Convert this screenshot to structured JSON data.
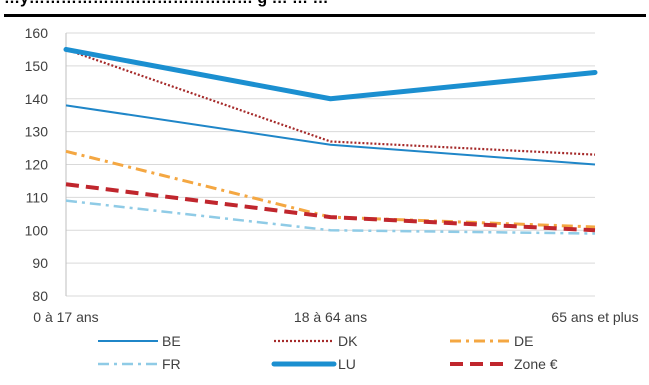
{
  "header": {
    "text": "…y…………………………………… g … … …"
  },
  "chart_data": {
    "type": "line",
    "categories": [
      "0 à 17 ans",
      "18 à 64 ans",
      "65 ans et plus"
    ],
    "ylim": [
      80,
      160
    ],
    "yticks": [
      80,
      90,
      100,
      110,
      120,
      130,
      140,
      150,
      160
    ],
    "grid": true,
    "legend_position": "bottom",
    "series": [
      {
        "name": "BE",
        "values": [
          138,
          126,
          120
        ],
        "color": "#1f86c8",
        "style": "solid-thin"
      },
      {
        "name": "DK",
        "values": [
          155,
          127,
          123
        ],
        "color": "#a52a2a",
        "style": "dotted"
      },
      {
        "name": "DE",
        "values": [
          124,
          104,
          101
        ],
        "color": "#f4a742",
        "style": "dash-dot"
      },
      {
        "name": "FR",
        "values": [
          109,
          100,
          99
        ],
        "color": "#8fcbe6",
        "style": "dash-dot-light"
      },
      {
        "name": "LU",
        "values": [
          155,
          140,
          148
        ],
        "color": "#1b8fd0",
        "style": "solid-thick"
      },
      {
        "name": "Zone €",
        "values": [
          114,
          104,
          100
        ],
        "color": "#c0262d",
        "style": "dashed-thick"
      }
    ]
  }
}
